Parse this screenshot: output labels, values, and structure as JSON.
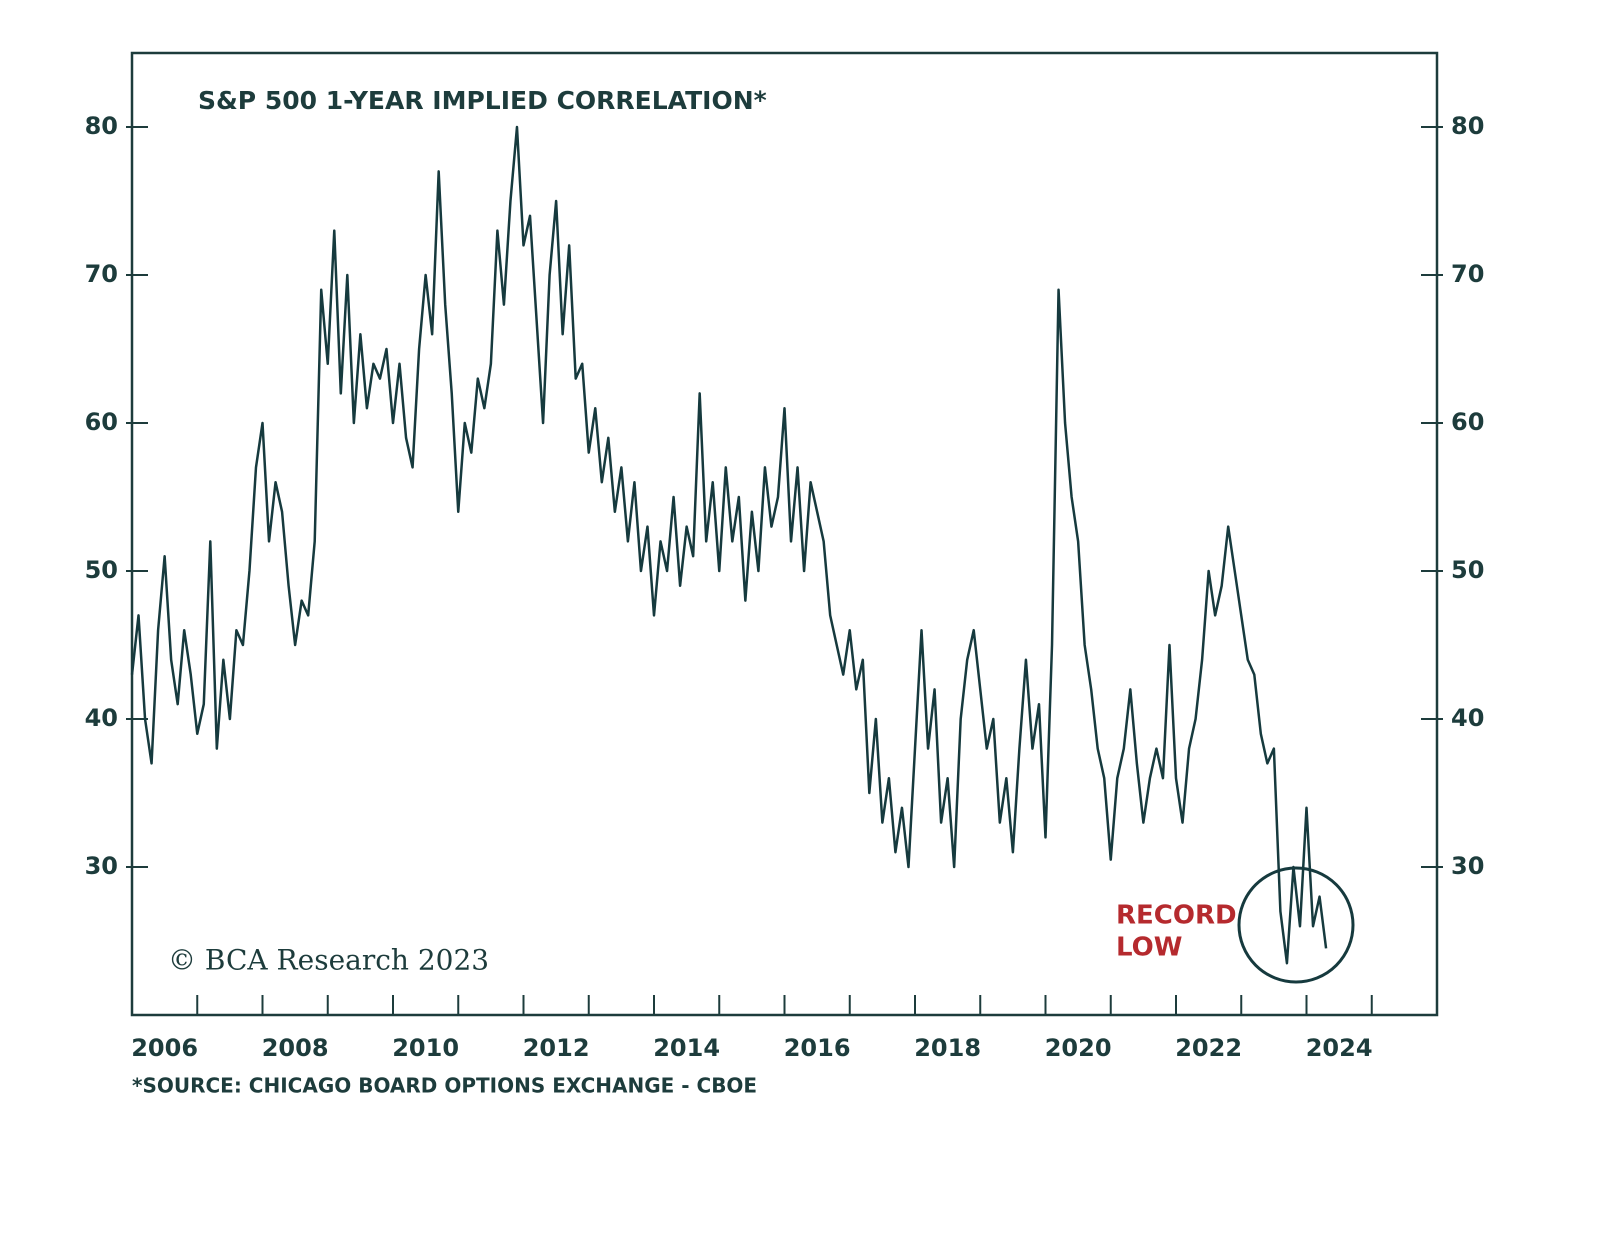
{
  "chart_data": {
    "type": "line",
    "title": "S&P 500 1-YEAR IMPLIED CORRELATION*",
    "copyright": "© BCA Research 2023",
    "source": "*SOURCE: CHICAGO BOARD OPTIONS EXCHANGE - CBOE",
    "annotation_lines": [
      "RECORD",
      "LOW"
    ],
    "annotation_color": "#b52a2e",
    "color": "#163a3e",
    "xlim": [
      2006,
      2026
    ],
    "ylim": [
      20,
      85
    ],
    "yticks": [
      30,
      40,
      50,
      60,
      70,
      80
    ],
    "xticks": [
      {
        "value": 2006.5,
        "label": "2006"
      },
      {
        "value": 2008.5,
        "label": "2008"
      },
      {
        "value": 2010.5,
        "label": "2010"
      },
      {
        "value": 2012.5,
        "label": "2012"
      },
      {
        "value": 2014.5,
        "label": "2014"
      },
      {
        "value": 2016.5,
        "label": "2016"
      },
      {
        "value": 2018.5,
        "label": "2018"
      },
      {
        "value": 2020.5,
        "label": "2020"
      },
      {
        "value": 2022.5,
        "label": "2022"
      },
      {
        "value": 2024.5,
        "label": "2024"
      }
    ],
    "xminor_ticks": [
      2007,
      2008,
      2009,
      2010,
      2011,
      2012,
      2013,
      2014,
      2015,
      2016,
      2017,
      2018,
      2019,
      2020,
      2021,
      2022,
      2023,
      2024,
      2025
    ],
    "x": [
      2006.0,
      2006.1,
      2006.2,
      2006.3,
      2006.4,
      2006.5,
      2006.6,
      2006.7,
      2006.8,
      2006.9,
      2007.0,
      2007.1,
      2007.2,
      2007.3,
      2007.4,
      2007.5,
      2007.6,
      2007.7,
      2007.8,
      2007.9,
      2008.0,
      2008.1,
      2008.2,
      2008.3,
      2008.4,
      2008.5,
      2008.6,
      2008.7,
      2008.8,
      2008.9,
      2009.0,
      2009.1,
      2009.2,
      2009.3,
      2009.4,
      2009.5,
      2009.6,
      2009.7,
      2009.8,
      2009.9,
      2010.0,
      2010.1,
      2010.2,
      2010.3,
      2010.4,
      2010.5,
      2010.6,
      2010.7,
      2010.8,
      2010.9,
      2011.0,
      2011.1,
      2011.2,
      2011.3,
      2011.4,
      2011.5,
      2011.6,
      2011.7,
      2011.8,
      2011.9,
      2012.0,
      2012.1,
      2012.2,
      2012.3,
      2012.4,
      2012.5,
      2012.6,
      2012.7,
      2012.8,
      2012.9,
      2013.0,
      2013.1,
      2013.2,
      2013.3,
      2013.4,
      2013.5,
      2013.6,
      2013.7,
      2013.8,
      2013.9,
      2014.0,
      2014.1,
      2014.2,
      2014.3,
      2014.4,
      2014.5,
      2014.6,
      2014.7,
      2014.8,
      2014.9,
      2015.0,
      2015.1,
      2015.2,
      2015.3,
      2015.4,
      2015.5,
      2015.6,
      2015.7,
      2015.8,
      2015.9,
      2016.0,
      2016.1,
      2016.2,
      2016.3,
      2016.4,
      2016.5,
      2016.6,
      2016.7,
      2016.8,
      2016.9,
      2017.0,
      2017.1,
      2017.2,
      2017.3,
      2017.4,
      2017.5,
      2017.6,
      2017.7,
      2017.8,
      2017.9,
      2018.0,
      2018.1,
      2018.2,
      2018.3,
      2018.4,
      2018.5,
      2018.6,
      2018.7,
      2018.8,
      2018.9,
      2019.0,
      2019.1,
      2019.2,
      2019.3,
      2019.4,
      2019.5,
      2019.6,
      2019.7,
      2019.8,
      2019.9,
      2020.0,
      2020.1,
      2020.2,
      2020.3,
      2020.4,
      2020.5,
      2020.6,
      2020.7,
      2020.8,
      2020.9,
      2021.0,
      2021.1,
      2021.2,
      2021.3,
      2021.4,
      2021.5,
      2021.6,
      2021.7,
      2021.8,
      2021.9,
      2022.0,
      2022.1,
      2022.2,
      2022.3,
      2022.4,
      2022.5,
      2022.6,
      2022.7,
      2022.8,
      2022.9,
      2023.0,
      2023.1,
      2023.2,
      2023.3,
      2023.4,
      2023.5,
      2023.6,
      2023.7,
      2023.8,
      2023.9,
      2024.0,
      2024.1,
      2024.2,
      2024.3
    ],
    "values": [
      43,
      47,
      40,
      37,
      46,
      51,
      44,
      41,
      46,
      43,
      39,
      41,
      52,
      38,
      44,
      40,
      46,
      45,
      50,
      57,
      60,
      52,
      56,
      54,
      49,
      45,
      48,
      47,
      52,
      69,
      64,
      73,
      62,
      70,
      60,
      66,
      61,
      64,
      63,
      65,
      60,
      64,
      59,
      57,
      65,
      70,
      66,
      77,
      68,
      62,
      54,
      60,
      58,
      63,
      61,
      64,
      73,
      68,
      75,
      80,
      72,
      74,
      67,
      60,
      70,
      75,
      66,
      72,
      63,
      64,
      58,
      61,
      56,
      59,
      54,
      57,
      52,
      56,
      50,
      53,
      47,
      52,
      50,
      55,
      49,
      53,
      51,
      62,
      52,
      56,
      50,
      57,
      52,
      55,
      48,
      54,
      50,
      57,
      53,
      55,
      61,
      52,
      57,
      50,
      56,
      54,
      52,
      47,
      45,
      43,
      46,
      42,
      44,
      35,
      40,
      33,
      36,
      31,
      34,
      30,
      38,
      46,
      38,
      42,
      33,
      36,
      30,
      40,
      44,
      46,
      42,
      38,
      40,
      33,
      36,
      31,
      38,
      44,
      38,
      41,
      32,
      45,
      69,
      60,
      55,
      52,
      45,
      42,
      38,
      36,
      30.5,
      36,
      38,
      42,
      37,
      33,
      36,
      38,
      36,
      45,
      36,
      33,
      38,
      40,
      44,
      50,
      47,
      49,
      53,
      50,
      47,
      44,
      43,
      39,
      37,
      38,
      27,
      23.5,
      30,
      26,
      34,
      26,
      28,
      24.5
    ]
  }
}
